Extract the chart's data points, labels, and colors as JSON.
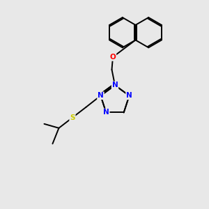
{
  "background_color": "#e8e8e8",
  "bond_color": "#000000",
  "atom_colors": {
    "N": "#0000ff",
    "S": "#cccc00",
    "O": "#ff0000",
    "C": "#000000"
  }
}
